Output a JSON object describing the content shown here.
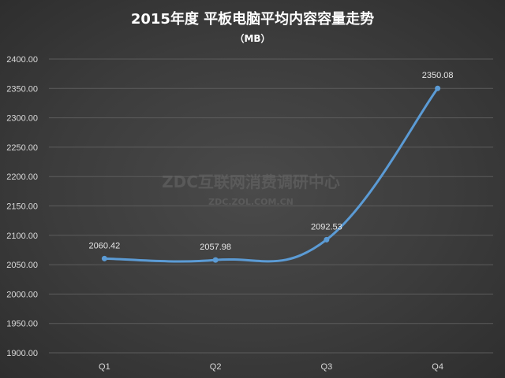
{
  "chart_data": {
    "type": "line",
    "title": "2015年度 平板电脑平均内容容量走势",
    "subtitle": "（MB）",
    "categories": [
      "Q1",
      "Q2",
      "Q3",
      "Q4"
    ],
    "values": [
      2060.42,
      2057.98,
      2092.53,
      2350.08
    ],
    "data_labels": [
      "2060.42",
      "2057.98",
      "2092.53",
      "2350.08"
    ],
    "y_ticks": [
      "1900.00",
      "1950.00",
      "2000.00",
      "2050.00",
      "2100.00",
      "2150.00",
      "2200.00",
      "2250.00",
      "2300.00",
      "2350.00",
      "2400.00"
    ],
    "ylim": [
      1900,
      2400
    ],
    "grid": true,
    "legend": "none",
    "line_color": "#5b9bd5"
  },
  "watermark": {
    "line1": "ZDC互联网消费调研中心",
    "line2": "ZDC.ZOL.COM.CN"
  }
}
